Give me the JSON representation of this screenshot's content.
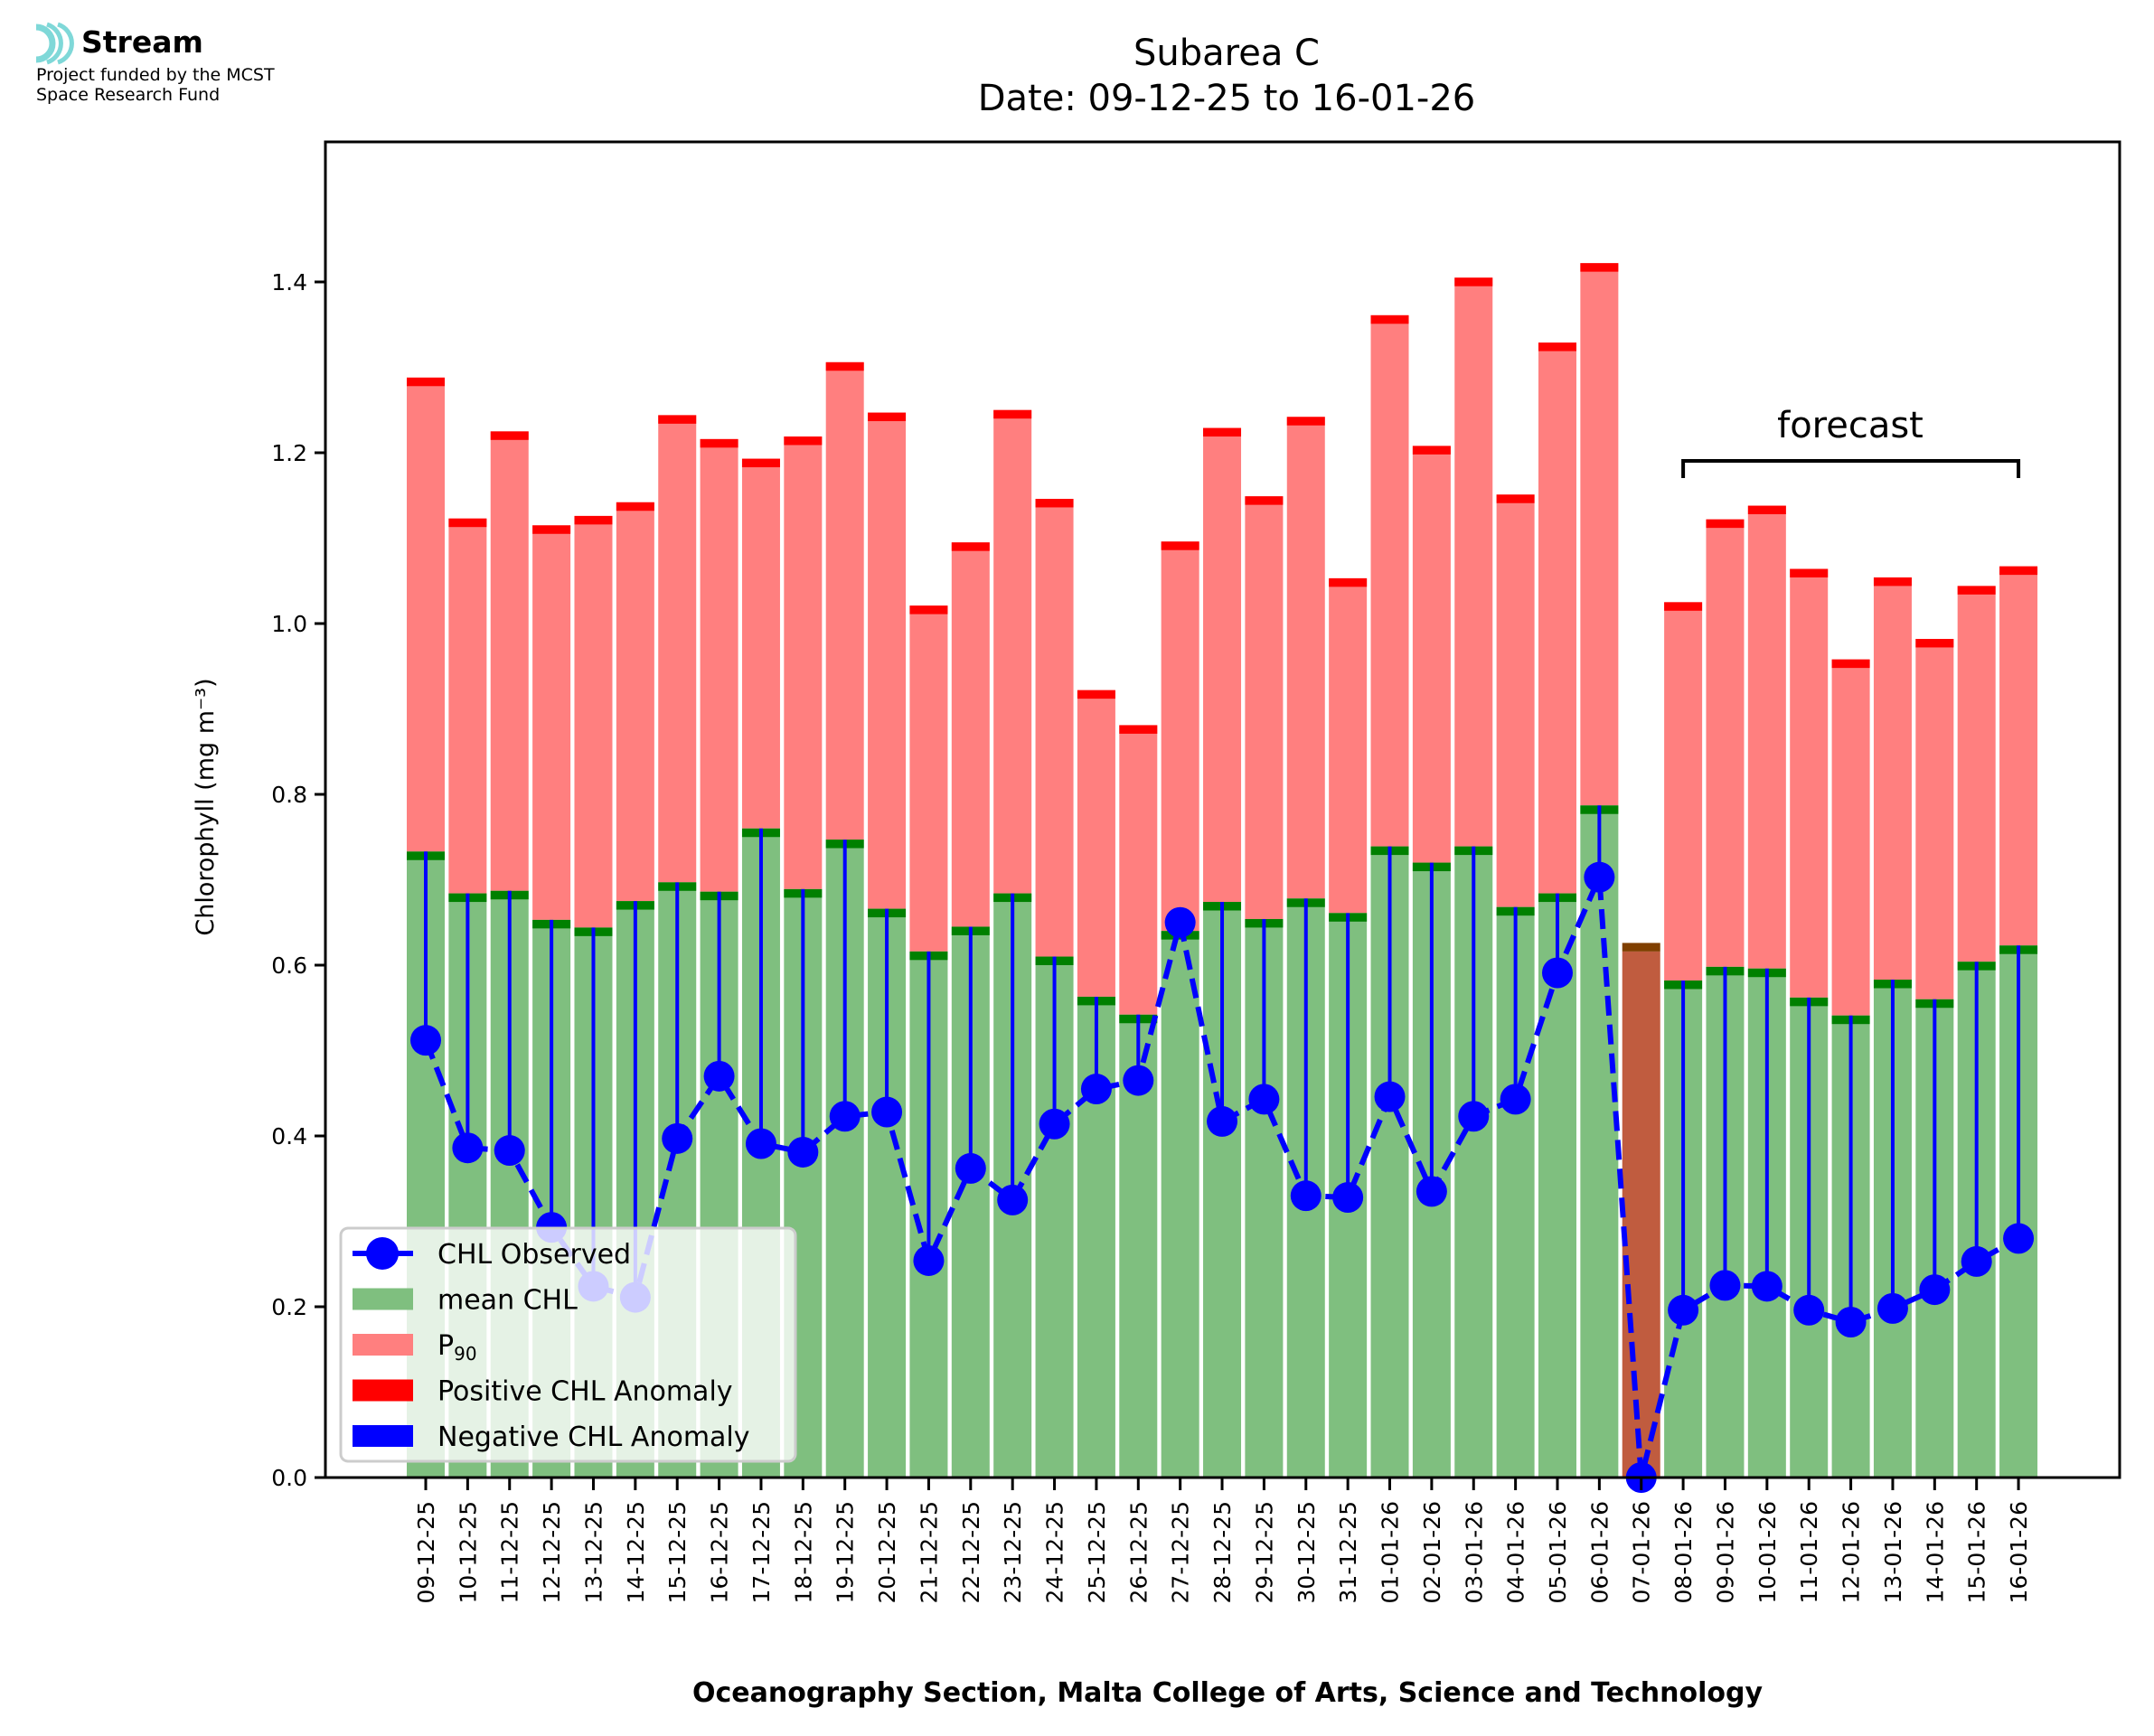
{
  "logo": {
    "name": "Stream",
    "funding_line1": "Project funded by the MCST",
    "funding_line2": "Space Research Fund",
    "accent": "#7fd8d8"
  },
  "chart_data": {
    "type": "bar",
    "title": "Subarea C",
    "subtitle": "Date: 09-12-25 to 16-01-26",
    "xlabel": "Oceanography Section, Malta College of Arts, Science and Technology",
    "ylabel": "Chlorophyll (mg m⁻³)",
    "ylim": [
      0,
      1.564
    ],
    "yticks": [
      0.0,
      0.2,
      0.4,
      0.6,
      0.8,
      1.0,
      1.2,
      1.4
    ],
    "ytick_labels": [
      "0.0",
      "0.2",
      "0.4",
      "0.6",
      "0.8",
      "1.0",
      "1.2",
      "1.4"
    ],
    "grid": false,
    "legend_position": "lower-left",
    "categories": [
      "09-12-25",
      "10-12-25",
      "11-12-25",
      "12-12-25",
      "13-12-25",
      "14-12-25",
      "15-12-25",
      "16-12-25",
      "17-12-25",
      "18-12-25",
      "19-12-25",
      "20-12-25",
      "21-12-25",
      "22-12-25",
      "23-12-25",
      "24-12-25",
      "25-12-25",
      "26-12-25",
      "27-12-25",
      "28-12-25",
      "29-12-25",
      "30-12-25",
      "31-12-25",
      "01-01-26",
      "02-01-26",
      "03-01-26",
      "04-01-26",
      "05-01-26",
      "06-01-26",
      "07-01-26",
      "08-01-26",
      "09-01-26",
      "10-01-26",
      "11-01-26",
      "12-01-26",
      "13-01-26",
      "14-01-26",
      "15-01-26",
      "16-01-26"
    ],
    "series": [
      {
        "name": "mean CHL",
        "color": "#7fbf7f",
        "cap_color": "#008000",
        "values": [
          0.733,
          0.684,
          0.687,
          0.653,
          0.644,
          0.675,
          0.697,
          0.686,
          0.76,
          0.689,
          0.747,
          0.666,
          0.616,
          0.645,
          0.684,
          0.61,
          0.563,
          0.542,
          0.64,
          0.674,
          0.654,
          0.678,
          0.661,
          0.739,
          0.72,
          0.739,
          0.668,
          0.684,
          0.787,
          null,
          0.582,
          0.598,
          0.596,
          0.562,
          0.541,
          0.583,
          0.56,
          0.604,
          0.623
        ]
      },
      {
        "name": "P90",
        "color": "#ff7f7f",
        "cap_color": "#ff0000",
        "values": [
          1.288,
          1.123,
          1.225,
          1.115,
          1.126,
          1.142,
          1.244,
          1.216,
          1.193,
          1.219,
          1.306,
          1.247,
          1.021,
          1.095,
          1.25,
          1.146,
          0.922,
          0.881,
          1.096,
          1.229,
          1.149,
          1.242,
          1.053,
          1.361,
          1.208,
          1.405,
          1.151,
          1.329,
          1.422,
          null,
          1.025,
          1.122,
          1.138,
          1.064,
          0.958,
          1.054,
          0.982,
          1.044,
          1.067
        ]
      },
      {
        "name": "CHL Observed",
        "color": "#0000ff",
        "style": "dashed-with-markers",
        "values": [
          0.512,
          0.386,
          0.383,
          0.293,
          0.224,
          0.211,
          0.397,
          0.47,
          0.391,
          0.381,
          0.423,
          0.428,
          0.254,
          0.362,
          0.325,
          0.414,
          0.455,
          0.465,
          0.65,
          0.417,
          0.443,
          0.33,
          0.328,
          0.446,
          0.335,
          0.423,
          0.443,
          0.591,
          0.703,
          0.0,
          0.196,
          0.225,
          0.224,
          0.196,
          0.182,
          0.198,
          0.22,
          0.253,
          0.28
        ]
      }
    ],
    "missing_data_bar": {
      "category": "07-01-26",
      "value": 0.616,
      "color": "#c05c3f",
      "cap_color": "#7f3f00"
    },
    "legend": [
      {
        "label": "CHL Observed",
        "kind": "line-marker",
        "color": "#0000ff"
      },
      {
        "label": "mean CHL",
        "kind": "patch",
        "color": "#7fbf7f"
      },
      {
        "label": "P",
        "sub": "90",
        "kind": "patch",
        "color": "#ff7f7f"
      },
      {
        "label": "Positive CHL Anomaly",
        "kind": "patch",
        "color": "#ff0000"
      },
      {
        "label": "Negative CHL Anomaly",
        "kind": "patch",
        "color": "#0000ff"
      }
    ],
    "annotation": {
      "text": "forecast",
      "from": "08-01-26",
      "to": "16-01-26"
    }
  }
}
